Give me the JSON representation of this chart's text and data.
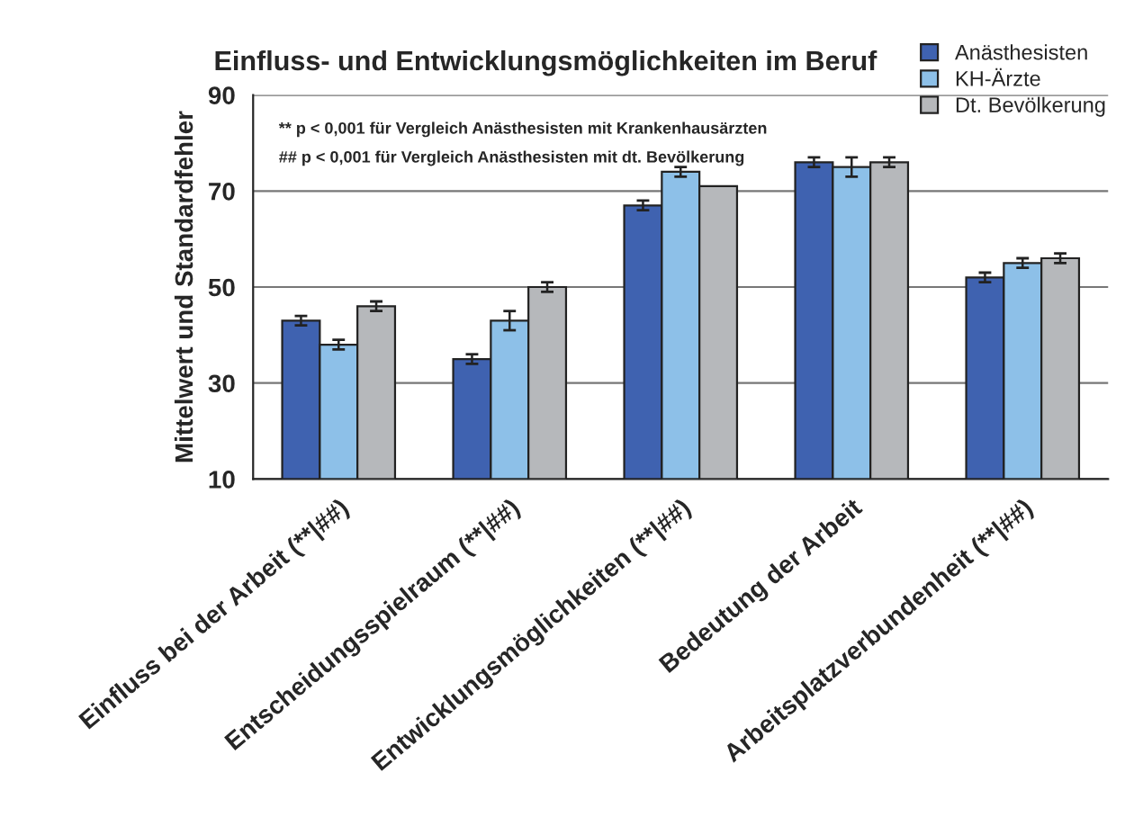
{
  "chart_data": {
    "type": "bar",
    "title": "Einfluss- und Entwicklungsmöglichkeiten im Beruf",
    "ylabel": "Mittelwert und Standardfehler",
    "categories": [
      "Einfluss bei der Arbeit (**|##)",
      "Entscheidungsspielraum (**|##)",
      "Entwicklungsmöglichkeiten (**|##)",
      "Bedeutung der Arbeit",
      "Arbeitsplatzverbundenheit (**|##)"
    ],
    "series": [
      {
        "name": "Anästhesisten",
        "color": "#3f62b0",
        "values": [
          43,
          35,
          67,
          76,
          52
        ],
        "errors": [
          1,
          1,
          1,
          1,
          1
        ]
      },
      {
        "name": "KH-Ärzte",
        "color": "#8dc0e8",
        "values": [
          38,
          43,
          74,
          75,
          55
        ],
        "errors": [
          1,
          2,
          1,
          2,
          1
        ]
      },
      {
        "name": "Dt. Bevölkerung",
        "color": "#b6b8bb",
        "values": [
          46,
          50,
          71,
          76,
          56
        ],
        "errors": [
          1,
          1,
          null,
          1,
          1
        ]
      }
    ],
    "annotations": [
      "** p < 0,001 für Vergleich Anästhesisten mit Krankenhausärzten",
      "## p < 0,001 für Vergleich Anästhesisten mit dt. Bevölkerung"
    ],
    "ylim": [
      10,
      90
    ],
    "yticks": [
      10,
      30,
      50,
      70,
      90
    ],
    "grid": "y",
    "legend": "top right"
  }
}
